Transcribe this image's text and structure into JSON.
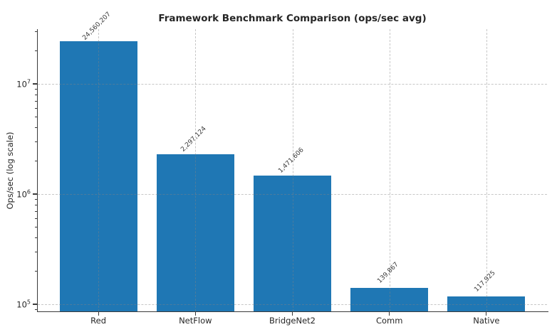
{
  "chart_data": {
    "type": "bar",
    "title": "Framework Benchmark Comparison (ops/sec avg)",
    "xlabel": "",
    "ylabel": "Ops/sec (log scale)",
    "y_scale": "log",
    "categories": [
      "Red",
      "NetFlow",
      "BridgeNet2",
      "Comm",
      "Native"
    ],
    "values": [
      24560207,
      2297124,
      1471606,
      139867,
      117925
    ],
    "value_labels": [
      "24,560,207",
      "2,297,124",
      "1,471,606",
      "139,867",
      "117,925"
    ],
    "y_tick_exponents": [
      5,
      6,
      7
    ],
    "y_tick_labels": [
      "10⁵",
      "10⁶",
      "10⁷"
    ],
    "ylim": [
      86100,
      31400000
    ],
    "grid": "dashed, horizontal at decades and vertical at category centers, drawn over bars",
    "legend": "none",
    "colors": {
      "bar": "#1f77b4",
      "grid": "#c9c9c9",
      "axis": "#3a3a3a",
      "text": "#262626",
      "background": "#ffffff"
    }
  }
}
